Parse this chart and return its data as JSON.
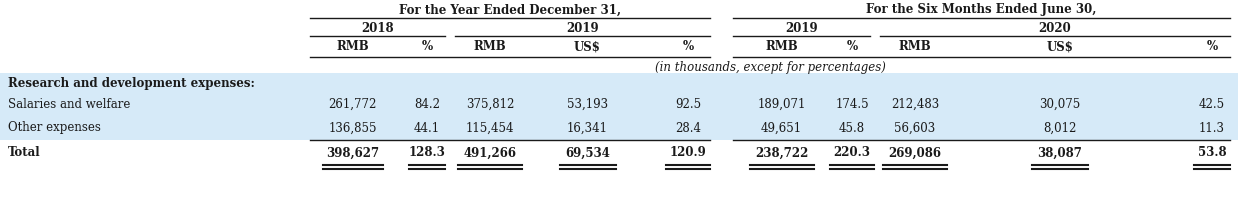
{
  "header1_text": "For the Year Ended December 31,",
  "header2_text": "For the Six Months Ended June 30,",
  "subheaders": [
    "2018",
    "2019",
    "2019",
    "2020"
  ],
  "col_headers": [
    "RMB",
    "%",
    "RMB",
    "US$",
    "%",
    "RMB",
    "%",
    "RMB",
    "US$",
    "%"
  ],
  "note": "(in thousands, except for percentages)",
  "section_label": "Research and development expenses:",
  "rows": [
    {
      "label": "Salaries and welfare",
      "values": [
        "261,772",
        "84.2",
        "375,812",
        "53,193",
        "92.5",
        "189,071",
        "174.5",
        "212,483",
        "30,075",
        "42.5"
      ],
      "bold": false
    },
    {
      "label": "Other expenses",
      "values": [
        "136,855",
        "44.1",
        "115,454",
        "16,341",
        "28.4",
        "49,651",
        "45.8",
        "56,603",
        "8,012",
        "11.3"
      ],
      "bold": false
    },
    {
      "label": "Total",
      "values": [
        "398,627",
        "128.3",
        "491,266",
        "69,534",
        "120.9",
        "238,722",
        "220.3",
        "269,086",
        "38,087",
        "53.8"
      ],
      "bold": true
    }
  ],
  "bg_light_blue": "#d6eaf8",
  "bg_white": "#ffffff",
  "text_color": "#1a1a1a",
  "font_size": 8.5
}
